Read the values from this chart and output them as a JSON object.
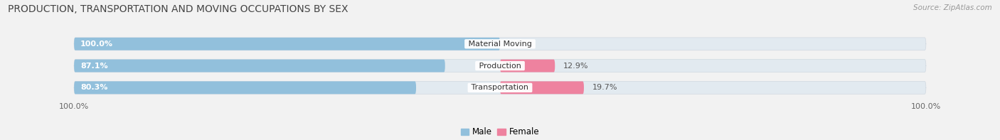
{
  "title": "PRODUCTION, TRANSPORTATION AND MOVING OCCUPATIONS BY SEX",
  "source": "Source: ZipAtlas.com",
  "categories": [
    "Material Moving",
    "Production",
    "Transportation"
  ],
  "male_pct": [
    100.0,
    87.1,
    80.3
  ],
  "female_pct": [
    0.0,
    12.9,
    19.7
  ],
  "male_color": "#92C0DC",
  "female_color": "#EE829F",
  "bar_track_color": "#E2EAF0",
  "bar_height": 0.58,
  "title_fontsize": 10,
  "label_fontsize": 8,
  "axis_label_fontsize": 8,
  "legend_fontsize": 8.5,
  "category_fontsize": 8,
  "bg_color": "#F2F2F2",
  "source_fontsize": 7.5
}
